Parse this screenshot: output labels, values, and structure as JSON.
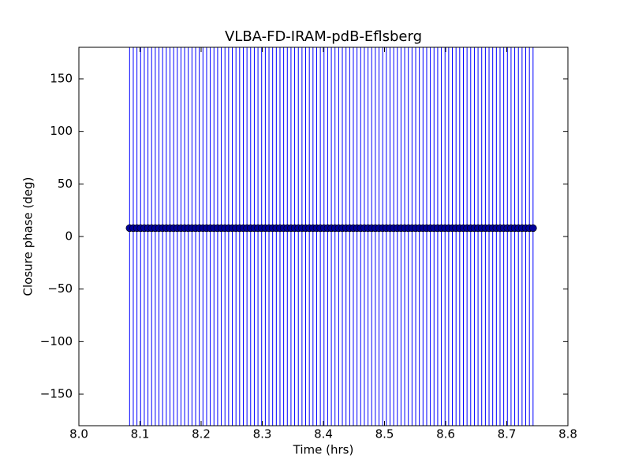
{
  "chart_data": {
    "type": "errorbar",
    "title": "VLBA-FD-IRAM-pdB-Eflsberg",
    "xlabel": "Time (hrs)",
    "ylabel": "Closure phase (deg)",
    "x": [
      8.083,
      8.089,
      8.095,
      8.101,
      8.107,
      8.113,
      8.119,
      8.125,
      8.131,
      8.137,
      8.143,
      8.149,
      8.155,
      8.161,
      8.167,
      8.173,
      8.179,
      8.185,
      8.191,
      8.197,
      8.203,
      8.209,
      8.215,
      8.221,
      8.227,
      8.233,
      8.239,
      8.245,
      8.251,
      8.257,
      8.263,
      8.269,
      8.275,
      8.281,
      8.287,
      8.293,
      8.299,
      8.305,
      8.311,
      8.317,
      8.323,
      8.329,
      8.335,
      8.341,
      8.347,
      8.353,
      8.359,
      8.365,
      8.371,
      8.377,
      8.383,
      8.389,
      8.395,
      8.401,
      8.407,
      8.413,
      8.419,
      8.425,
      8.431,
      8.437,
      8.443,
      8.449,
      8.455,
      8.461,
      8.467,
      8.473,
      8.479,
      8.485,
      8.491,
      8.497,
      8.503,
      8.509,
      8.515,
      8.521,
      8.527,
      8.533,
      8.539,
      8.545,
      8.551,
      8.557,
      8.563,
      8.569,
      8.575,
      8.581,
      8.587,
      8.593,
      8.599,
      8.605,
      8.611,
      8.617,
      8.623,
      8.629,
      8.635,
      8.641,
      8.647,
      8.653,
      8.659,
      8.665,
      8.671,
      8.677,
      8.683,
      8.689,
      8.695,
      8.701,
      8.707,
      8.713,
      8.719,
      8.725,
      8.731,
      8.737,
      8.743
    ],
    "values": [
      8,
      8,
      8,
      8,
      8,
      8,
      8,
      8,
      8,
      8,
      8,
      8,
      8,
      8,
      8,
      8,
      8,
      8,
      8,
      8,
      8,
      8,
      8,
      8,
      8,
      8,
      8,
      8,
      8,
      8,
      8,
      8,
      8,
      8,
      8,
      8,
      8,
      8,
      8,
      8,
      8,
      8,
      8,
      8,
      8,
      8,
      8,
      8,
      8,
      8,
      8,
      8,
      8,
      8,
      8,
      8,
      8,
      8,
      8,
      8,
      8,
      8,
      8,
      8,
      8,
      8,
      8,
      8,
      8,
      8,
      8,
      8,
      8,
      8,
      8,
      8,
      8,
      8,
      8,
      8,
      8,
      8,
      8,
      8,
      8,
      8,
      8,
      8,
      8,
      8,
      8,
      8,
      8,
      8,
      8,
      8,
      8,
      8,
      8,
      8,
      8,
      8,
      8,
      8,
      8,
      8,
      8,
      8,
      8,
      8,
      8
    ],
    "errors": [
      200,
      200,
      200,
      200,
      200,
      200,
      200,
      200,
      200,
      200,
      200,
      200,
      200,
      200,
      200,
      200,
      200,
      200,
      200,
      200,
      200,
      200,
      200,
      200,
      200,
      200,
      200,
      200,
      200,
      200,
      200,
      200,
      200,
      200,
      200,
      200,
      200,
      200,
      200,
      200,
      200,
      200,
      200,
      200,
      200,
      200,
      200,
      200,
      200,
      200,
      200,
      200,
      200,
      200,
      200,
      200,
      200,
      200,
      200,
      200,
      200,
      200,
      200,
      200,
      200,
      200,
      200,
      200,
      200,
      200,
      200,
      200,
      200,
      200,
      200,
      200,
      200,
      200,
      200,
      200,
      200,
      200,
      200,
      200,
      200,
      200,
      200,
      200,
      200,
      200,
      200,
      200,
      200,
      200,
      200,
      200,
      200,
      200,
      200,
      200,
      200,
      200,
      200,
      200,
      200,
      200,
      200,
      200,
      200,
      200,
      200
    ],
    "color": "#0000ff",
    "marker_color": "#000099",
    "xlim": [
      8.0,
      8.8
    ],
    "ylim": [
      -180,
      180
    ],
    "xticks": [
      {
        "value": 8.0,
        "label": "8.0"
      },
      8.1,
      8.2,
      8.3,
      8.4,
      8.5,
      8.6,
      8.7,
      8.8
    ],
    "yticks": [
      {
        "value": -150,
        "label": "−150"
      },
      {
        "value": -100,
        "label": "−100"
      },
      {
        "value": -50,
        "label": "−50"
      },
      0,
      50,
      100,
      150
    ],
    "grid": false
  }
}
